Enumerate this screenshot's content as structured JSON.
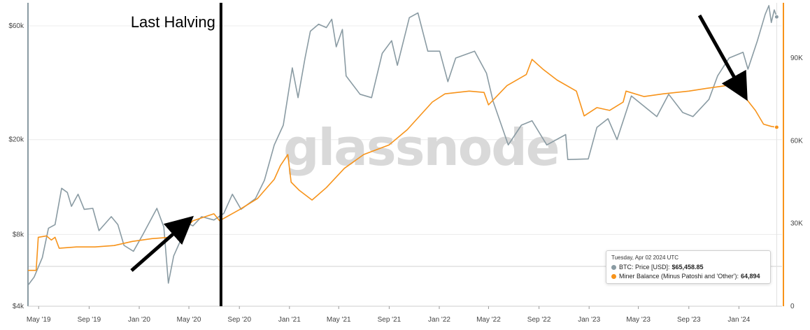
{
  "chart_data": {
    "type": "line",
    "watermark": "glassnode",
    "annotations": [
      {
        "text": "Last Halving",
        "date": "2020-05-11"
      }
    ],
    "x_ticks": [
      "May '19",
      "Sep '19",
      "Jan '20",
      "May '20",
      "Sep '20",
      "Jan '21",
      "May '21",
      "Sep '21",
      "Jan '22",
      "May '22",
      "Sep '22",
      "Jan '23",
      "May '23",
      "Sep '23",
      "Jan '24"
    ],
    "y_left_ticks": [
      "$4k",
      "$8k",
      "$20k",
      "$60k"
    ],
    "y_right_ticks": [
      "0",
      "30K",
      "60K",
      "90K"
    ],
    "y_left_scale": "log",
    "y_left_range": [
      4000,
      75000
    ],
    "y_right_range": [
      0,
      110000
    ],
    "x_range": [
      "2019-04-05",
      "2024-04-15"
    ],
    "series": [
      {
        "name": "BTC: Price [USD]",
        "axis": "left",
        "color": "#8a9ba3",
        "points": [
          [
            "2019-04-05",
            4900
          ],
          [
            "2019-04-20",
            5300
          ],
          [
            "2019-05-10",
            6400
          ],
          [
            "2019-05-25",
            8500
          ],
          [
            "2019-06-10",
            8800
          ],
          [
            "2019-06-26",
            12500
          ],
          [
            "2019-07-10",
            12000
          ],
          [
            "2019-07-20",
            10500
          ],
          [
            "2019-08-05",
            11800
          ],
          [
            "2019-08-20",
            10200
          ],
          [
            "2019-09-10",
            10300
          ],
          [
            "2019-09-25",
            8300
          ],
          [
            "2019-10-25",
            9500
          ],
          [
            "2019-11-10",
            8800
          ],
          [
            "2019-11-25",
            7200
          ],
          [
            "2019-12-18",
            6800
          ],
          [
            "2020-01-10",
            8000
          ],
          [
            "2020-02-13",
            10300
          ],
          [
            "2020-03-01",
            8600
          ],
          [
            "2020-03-12",
            5000
          ],
          [
            "2020-03-25",
            6500
          ],
          [
            "2020-04-29",
            8900
          ],
          [
            "2020-05-11",
            8700
          ],
          [
            "2020-06-01",
            9500
          ],
          [
            "2020-07-01",
            9200
          ],
          [
            "2020-07-25",
            9800
          ],
          [
            "2020-08-15",
            11800
          ],
          [
            "2020-09-05",
            10200
          ],
          [
            "2020-10-10",
            11300
          ],
          [
            "2020-11-01",
            13500
          ],
          [
            "2020-11-25",
            19000
          ],
          [
            "2020-12-17",
            23000
          ],
          [
            "2021-01-08",
            40000
          ],
          [
            "2021-01-22",
            30000
          ],
          [
            "2021-02-08",
            44000
          ],
          [
            "2021-02-21",
            57000
          ],
          [
            "2021-03-13",
            61000
          ],
          [
            "2021-04-01",
            59000
          ],
          [
            "2021-04-14",
            64000
          ],
          [
            "2021-04-25",
            49000
          ],
          [
            "2021-05-10",
            58000
          ],
          [
            "2021-05-19",
            37000
          ],
          [
            "2021-06-22",
            31000
          ],
          [
            "2021-07-20",
            30000
          ],
          [
            "2021-08-15",
            46000
          ],
          [
            "2021-09-07",
            52000
          ],
          [
            "2021-09-21",
            41000
          ],
          [
            "2021-10-20",
            65000
          ],
          [
            "2021-11-10",
            68000
          ],
          [
            "2021-12-04",
            47000
          ],
          [
            "2022-01-02",
            47000
          ],
          [
            "2022-01-22",
            35000
          ],
          [
            "2022-02-10",
            44000
          ],
          [
            "2022-03-28",
            47000
          ],
          [
            "2022-04-26",
            38000
          ],
          [
            "2022-05-12",
            29000
          ],
          [
            "2022-06-18",
            19000
          ],
          [
            "2022-07-20",
            23000
          ],
          [
            "2022-08-15",
            24000
          ],
          [
            "2022-09-20",
            19000
          ],
          [
            "2022-11-05",
            21000
          ],
          [
            "2022-11-10",
            16500
          ],
          [
            "2022-12-30",
            16600
          ],
          [
            "2023-01-20",
            22500
          ],
          [
            "2023-02-16",
            24500
          ],
          [
            "2023-03-10",
            20000
          ],
          [
            "2023-04-14",
            30500
          ],
          [
            "2023-06-15",
            25000
          ],
          [
            "2023-07-14",
            31000
          ],
          [
            "2023-08-17",
            26000
          ],
          [
            "2023-09-11",
            25000
          ],
          [
            "2023-10-20",
            29500
          ],
          [
            "2023-11-10",
            37000
          ],
          [
            "2023-12-08",
            44000
          ],
          [
            "2024-01-11",
            46500
          ],
          [
            "2024-01-23",
            39500
          ],
          [
            "2024-02-15",
            52000
          ],
          [
            "2024-03-05",
            67000
          ],
          [
            "2024-03-14",
            73000
          ],
          [
            "2024-03-20",
            62000
          ],
          [
            "2024-03-27",
            70000
          ],
          [
            "2024-04-02",
            65458.85
          ]
        ]
      },
      {
        "name": "Miner Balance (Minus Patoshi and 'Other')",
        "axis": "right",
        "color": "#f7931a",
        "points": [
          [
            "2019-04-05",
            13000
          ],
          [
            "2019-04-25",
            13000
          ],
          [
            "2019-04-30",
            25000
          ],
          [
            "2019-05-20",
            25500
          ],
          [
            "2019-06-01",
            24000
          ],
          [
            "2019-06-10",
            25000
          ],
          [
            "2019-06-20",
            21000
          ],
          [
            "2019-08-01",
            21500
          ],
          [
            "2019-09-15",
            21500
          ],
          [
            "2019-11-01",
            22000
          ],
          [
            "2019-12-15",
            23500
          ],
          [
            "2020-02-01",
            24500
          ],
          [
            "2020-03-15",
            25000
          ],
          [
            "2020-04-20",
            28000
          ],
          [
            "2020-05-11",
            31000
          ],
          [
            "2020-07-01",
            33500
          ],
          [
            "2020-07-15",
            31000
          ],
          [
            "2020-09-01",
            35000
          ],
          [
            "2020-10-15",
            39000
          ],
          [
            "2020-11-25",
            46000
          ],
          [
            "2020-12-10",
            51000
          ],
          [
            "2020-12-28",
            55000
          ],
          [
            "2021-01-05",
            45000
          ],
          [
            "2021-01-25",
            42000
          ],
          [
            "2021-02-25",
            38500
          ],
          [
            "2021-04-01",
            43000
          ],
          [
            "2021-05-15",
            50000
          ],
          [
            "2021-07-01",
            55000
          ],
          [
            "2021-09-01",
            58500
          ],
          [
            "2021-10-15",
            64000
          ],
          [
            "2021-12-15",
            74000
          ],
          [
            "2022-01-15",
            77000
          ],
          [
            "2022-03-15",
            78000
          ],
          [
            "2022-04-20",
            77500
          ],
          [
            "2022-05-01",
            73000
          ],
          [
            "2022-06-15",
            80000
          ],
          [
            "2022-08-01",
            84000
          ],
          [
            "2022-08-15",
            89500
          ],
          [
            "2022-09-10",
            86000
          ],
          [
            "2022-10-15",
            82000
          ],
          [
            "2022-12-01",
            78000
          ],
          [
            "2022-12-20",
            69000
          ],
          [
            "2023-01-20",
            72000
          ],
          [
            "2023-02-20",
            71000
          ],
          [
            "2023-03-25",
            74000
          ],
          [
            "2023-04-01",
            78000
          ],
          [
            "2023-05-15",
            76000
          ],
          [
            "2023-07-01",
            77000
          ],
          [
            "2023-09-01",
            78000
          ],
          [
            "2023-10-15",
            79000
          ],
          [
            "2023-12-01",
            80000
          ],
          [
            "2024-01-01",
            78000
          ],
          [
            "2024-01-20",
            75000
          ],
          [
            "2024-02-10",
            71000
          ],
          [
            "2024-03-01",
            66000
          ],
          [
            "2024-03-20",
            65200
          ],
          [
            "2024-04-02",
            64894
          ]
        ]
      }
    ]
  },
  "tooltip": {
    "date": "Tuesday, Apr 02 2024 UTC",
    "rows": [
      {
        "label": "BTC: Price [USD]:",
        "value": "$65,458.85",
        "color": "#8a9ba3"
      },
      {
        "label": "Miner Balance (Minus Patoshi and 'Other'):",
        "value": "64,894",
        "color": "#f7931a"
      }
    ]
  }
}
